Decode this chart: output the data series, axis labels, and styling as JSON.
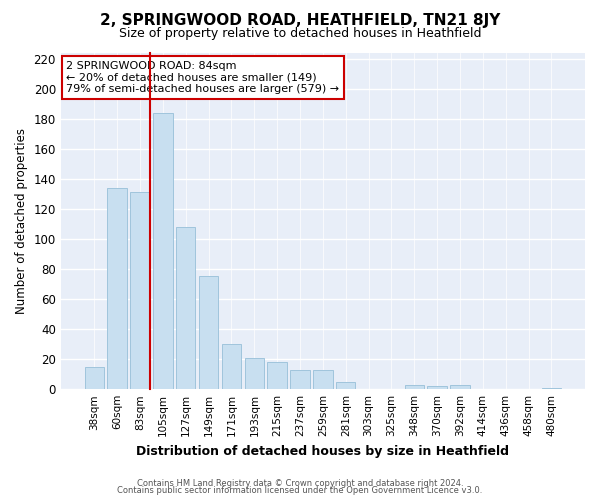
{
  "title": "2, SPRINGWOOD ROAD, HEATHFIELD, TN21 8JY",
  "subtitle": "Size of property relative to detached houses in Heathfield",
  "xlabel": "Distribution of detached houses by size in Heathfield",
  "ylabel": "Number of detached properties",
  "bar_labels": [
    "38sqm",
    "60sqm",
    "83sqm",
    "105sqm",
    "127sqm",
    "149sqm",
    "171sqm",
    "193sqm",
    "215sqm",
    "237sqm",
    "259sqm",
    "281sqm",
    "303sqm",
    "325sqm",
    "348sqm",
    "370sqm",
    "392sqm",
    "414sqm",
    "436sqm",
    "458sqm",
    "480sqm"
  ],
  "bar_values": [
    15,
    134,
    131,
    184,
    108,
    75,
    30,
    21,
    18,
    13,
    13,
    5,
    0,
    0,
    3,
    2,
    3,
    0,
    0,
    0,
    1
  ],
  "bar_color": "#c8dff0",
  "bar_edge_color": "#a0c4dc",
  "vline_color": "#cc0000",
  "vline_x_index": 2,
  "annotation_title": "2 SPRINGWOOD ROAD: 84sqm",
  "annotation_line1": "← 20% of detached houses are smaller (149)",
  "annotation_line2": "79% of semi-detached houses are larger (579) →",
  "ylim_max": 224,
  "yticks": [
    0,
    20,
    40,
    60,
    80,
    100,
    120,
    140,
    160,
    180,
    200,
    220
  ],
  "footer1": "Contains HM Land Registry data © Crown copyright and database right 2024.",
  "footer2": "Contains public sector information licensed under the Open Government Licence v3.0.",
  "bg_color": "#ffffff",
  "plot_bg_color": "#e8eef8",
  "grid_color": "#ffffff",
  "annotation_box_color": "#cc0000",
  "annotation_text_color": "#000000"
}
